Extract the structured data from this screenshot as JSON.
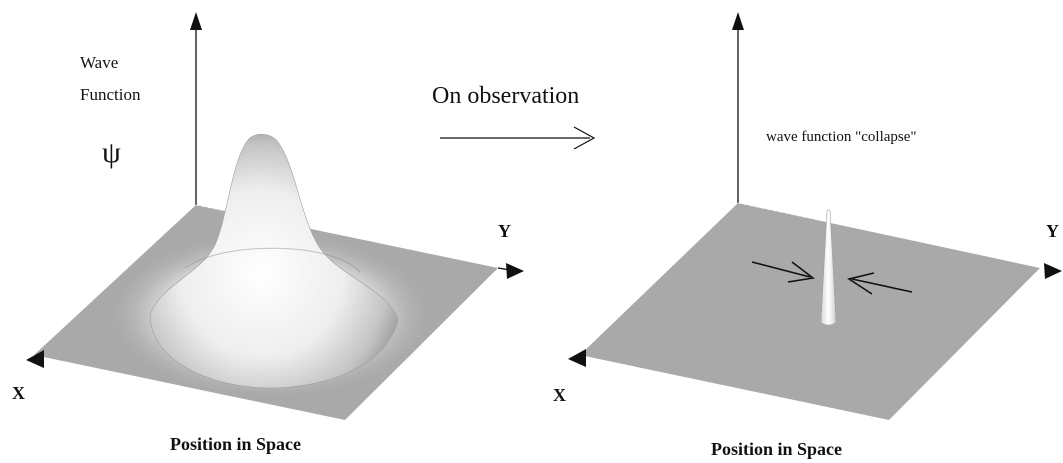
{
  "left_panel": {
    "vertical_axis_label_line1": "Wave",
    "vertical_axis_label_line2": "Function",
    "psi_symbol": "ψ",
    "x_axis_label": "X",
    "y_axis_label": "Y",
    "plane_caption": "Position in Space"
  },
  "transition": {
    "label": "On observation"
  },
  "right_panel": {
    "annotation": "wave function \"collapse\"",
    "x_axis_label": "X",
    "y_axis_label": "Y",
    "plane_caption": "Position in Space"
  },
  "colors": {
    "plane": "#a9a9a9",
    "axis": "#111111",
    "surface_highlight": "#ffffff",
    "surface_shadow": "#8f8f8f"
  }
}
